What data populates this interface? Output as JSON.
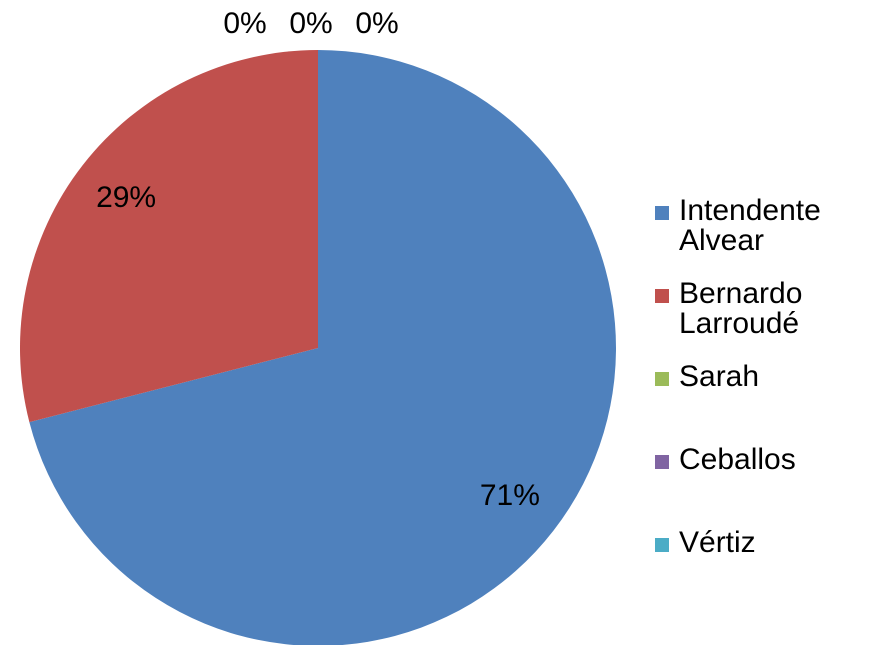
{
  "chart_data": {
    "type": "pie",
    "categories": [
      "Intendente Alvear",
      "Bernardo Larroudé",
      "Sarah",
      "Ceballos",
      "Vértiz"
    ],
    "values": [
      71,
      29,
      0,
      0,
      0
    ],
    "value_labels": [
      "71%",
      "29%",
      "0%",
      "0%",
      "0%"
    ],
    "colors": [
      "#4f81bd",
      "#c0504d",
      "#9bbb59",
      "#8064a2",
      "#4bacc6"
    ],
    "legend": "right"
  }
}
